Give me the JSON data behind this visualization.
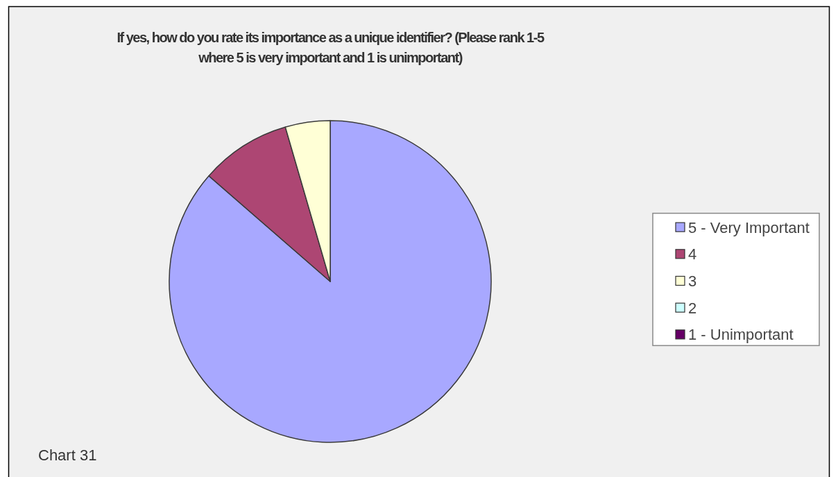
{
  "chart_data": {
    "type": "pie",
    "title": "If yes, how do you rate its importance as a unique identifier? (Please rank 1-5 where 5 is very important and 1 is unimportant)",
    "categories": [
      "5 - Very Important",
      "4",
      "3",
      "2",
      "1 - Unimportant"
    ],
    "values": [
      86.4,
      9.1,
      4.5,
      0,
      0
    ],
    "colors": [
      "#a8a8ff",
      "#ad4673",
      "#ffffd6",
      "#ccffff",
      "#660066"
    ],
    "legend": "right",
    "annotations": [
      "Chart 31"
    ]
  }
}
